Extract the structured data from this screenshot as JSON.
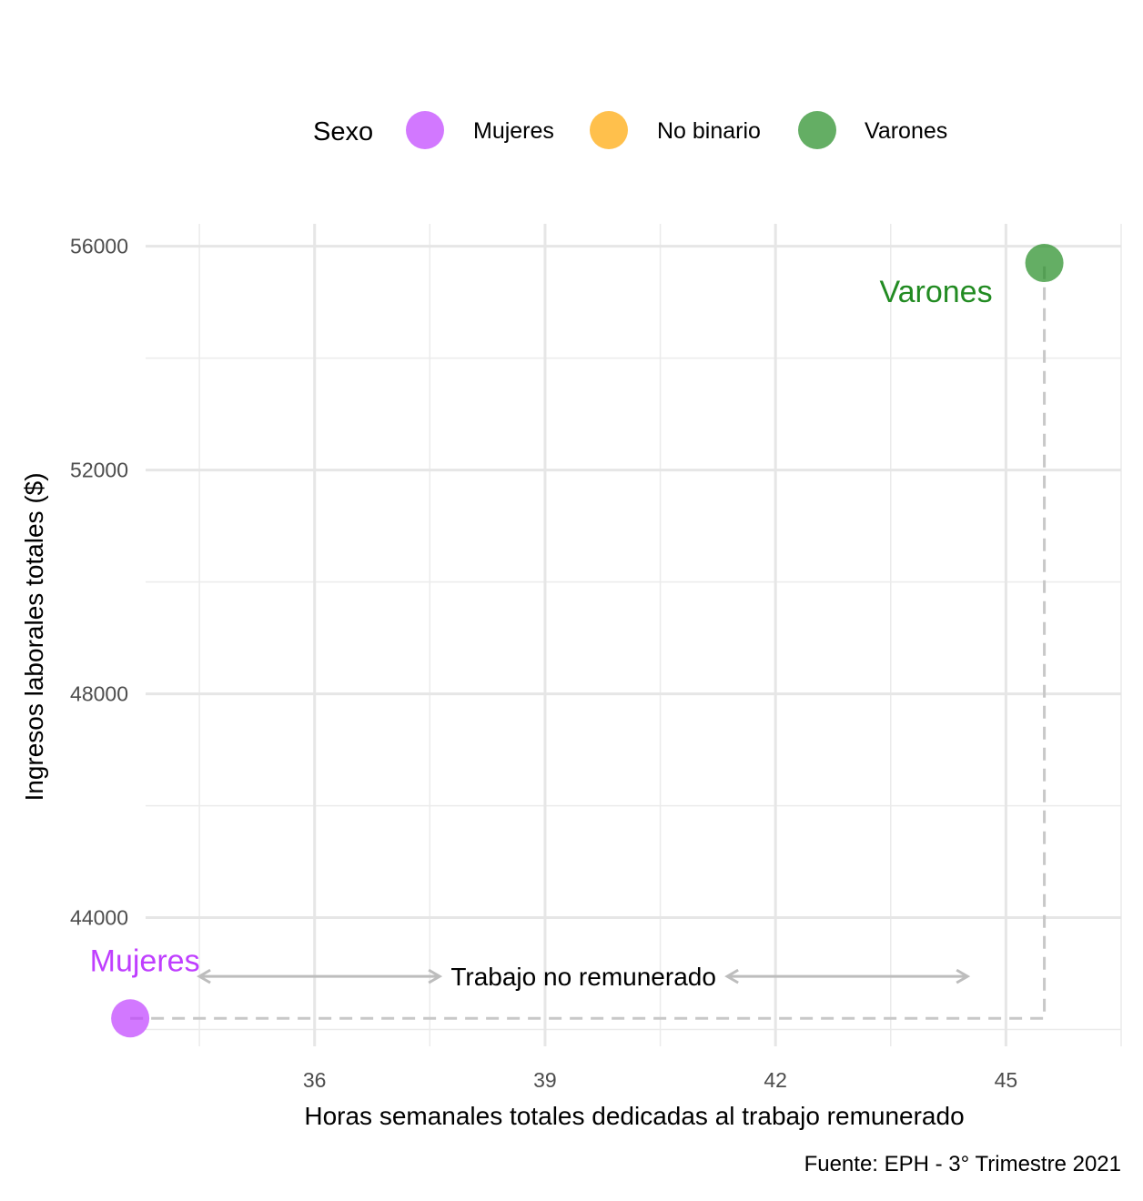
{
  "chart_data": {
    "type": "scatter",
    "xlabel": "Horas semanales totales dedicadas al trabajo remunerado",
    "ylabel": "Ingresos laborales totales ($)",
    "xlim": [
      33.8,
      46.5
    ],
    "ylim": [
      41700,
      56400
    ],
    "x_ticks": [
      36,
      39,
      42,
      45
    ],
    "y_ticks": [
      44000,
      48000,
      52000,
      56000
    ],
    "grid": true,
    "legend": {
      "title": "Sexo",
      "position": "top",
      "entries": [
        {
          "name": "Mujeres",
          "color": "#bf3eff"
        },
        {
          "name": "No binario",
          "color": "#ffa500"
        },
        {
          "name": "Varones",
          "color": "#228b22"
        }
      ]
    },
    "series": [
      {
        "name": "Mujeres",
        "color": "#bf3eff",
        "x": 33.6,
        "y": 42200,
        "label": "Mujeres"
      },
      {
        "name": "Varones",
        "color": "#228b22",
        "x": 45.5,
        "y": 55700,
        "label": "Varones"
      }
    ],
    "annotations": {
      "arrow_text": "Trabajo no remunerado",
      "arrow_from_x": 34.5,
      "arrow_to_x": 44.5,
      "arrow_y": 42950
    },
    "caption": "Fuente: EPH - 3° Trimestre 2021"
  }
}
